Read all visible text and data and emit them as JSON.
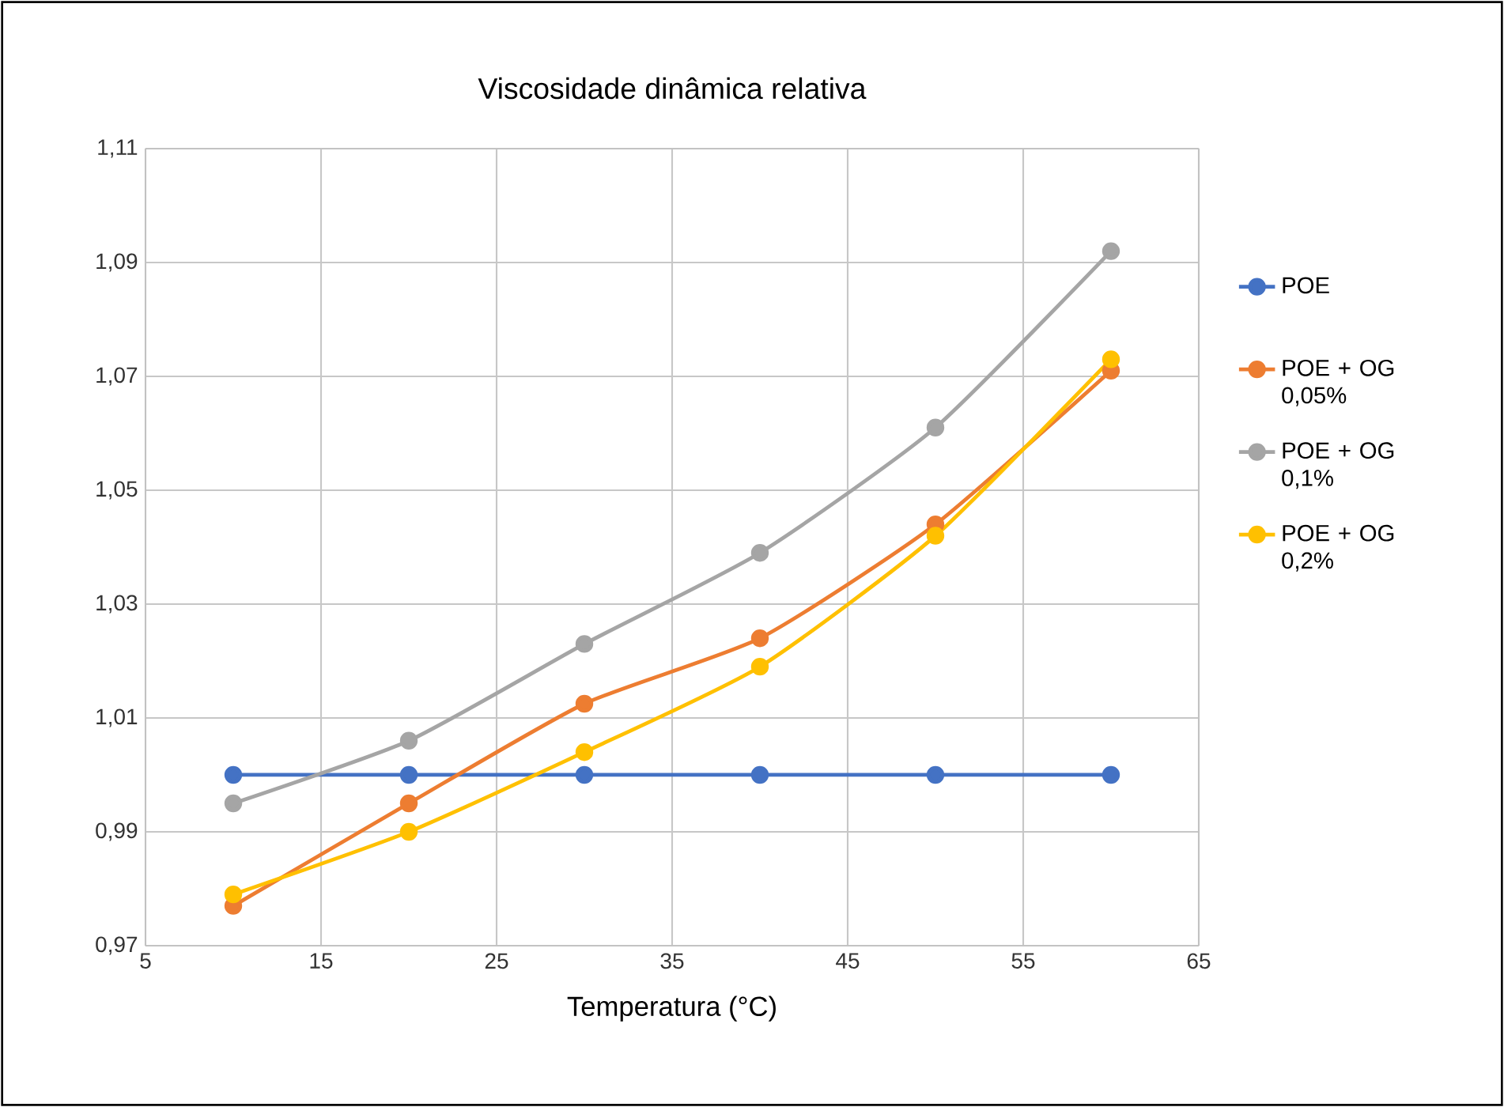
{
  "chart_data": {
    "type": "line",
    "title": "Viscosidade dinâmica relativa",
    "xlabel": "Temperatura (°C)",
    "x": [
      10,
      20,
      30,
      40,
      50,
      60
    ],
    "series": [
      {
        "name": "POE",
        "color": "#4472c4",
        "values": [
          1.0,
          1.0,
          1.0,
          1.0,
          1.0,
          1.0
        ]
      },
      {
        "name": "POE + OG 0,05%",
        "color": "#ed7d31",
        "values": [
          0.977,
          0.995,
          1.0125,
          1.024,
          1.044,
          1.071
        ]
      },
      {
        "name": "POE + OG 0,1%",
        "color": "#a5a5a5",
        "values": [
          0.995,
          1.006,
          1.023,
          1.039,
          1.061,
          1.092
        ]
      },
      {
        "name": "POE + OG 0,2%",
        "color": "#ffc000",
        "values": [
          0.979,
          0.99,
          1.004,
          1.019,
          1.042,
          1.073
        ]
      }
    ],
    "xlim": [
      5,
      65
    ],
    "xticks": [
      5,
      15,
      25,
      35,
      45,
      55,
      65
    ],
    "ylim": [
      0.97,
      1.11
    ],
    "yticks": [
      {
        "value": 0.97,
        "label": "0,97"
      },
      {
        "value": 0.99,
        "label": "0,99"
      },
      {
        "value": 1.01,
        "label": "1,01"
      },
      {
        "value": 1.03,
        "label": "1,03"
      },
      {
        "value": 1.05,
        "label": "1,05"
      },
      {
        "value": 1.07,
        "label": "1,07"
      },
      {
        "value": 1.09,
        "label": "1,09"
      },
      {
        "value": 1.11,
        "label": "1,11"
      }
    ],
    "grid": true,
    "legend": "right",
    "marker": "circle",
    "line_style": "solid"
  }
}
